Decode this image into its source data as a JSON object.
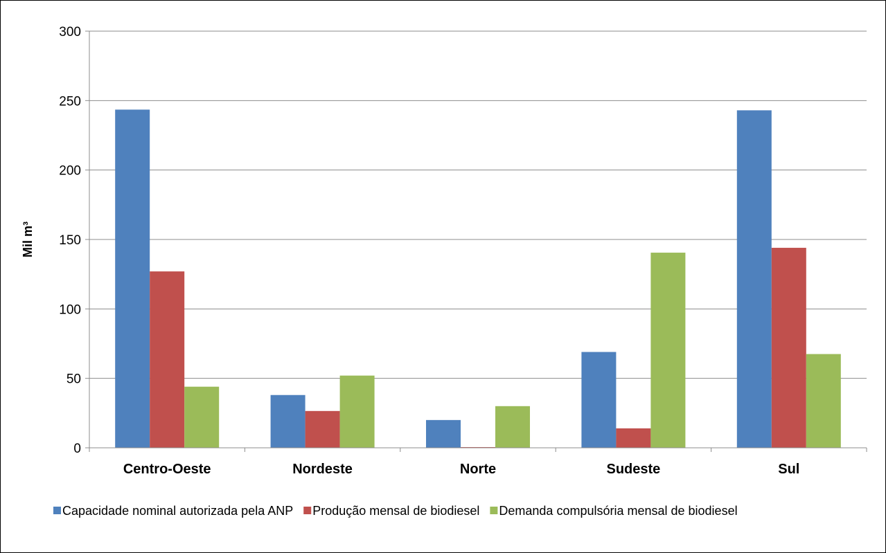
{
  "chart_data": {
    "type": "bar",
    "title": "",
    "xlabel": "",
    "ylabel": "Mil m³",
    "ylim": [
      0,
      300
    ],
    "yticks": [
      0,
      50,
      100,
      150,
      200,
      250,
      300
    ],
    "grid": true,
    "legend_position": "bottom",
    "categories": [
      "Centro-Oeste",
      "Nordeste",
      "Norte",
      "Sudeste",
      "Sul"
    ],
    "series": [
      {
        "name": "Capacidade nominal autorizada pela ANP",
        "color": "#4F81BD",
        "values": [
          243.5,
          38,
          20,
          69,
          243
        ]
      },
      {
        "name": "Produção mensal de biodiesel",
        "color": "#C0504D",
        "values": [
          127,
          26.5,
          0.5,
          14,
          144
        ]
      },
      {
        "name": "Demanda compulsória mensal de biodiesel",
        "color": "#9BBB59",
        "values": [
          44,
          52,
          30,
          140.5,
          67.5
        ]
      }
    ]
  }
}
